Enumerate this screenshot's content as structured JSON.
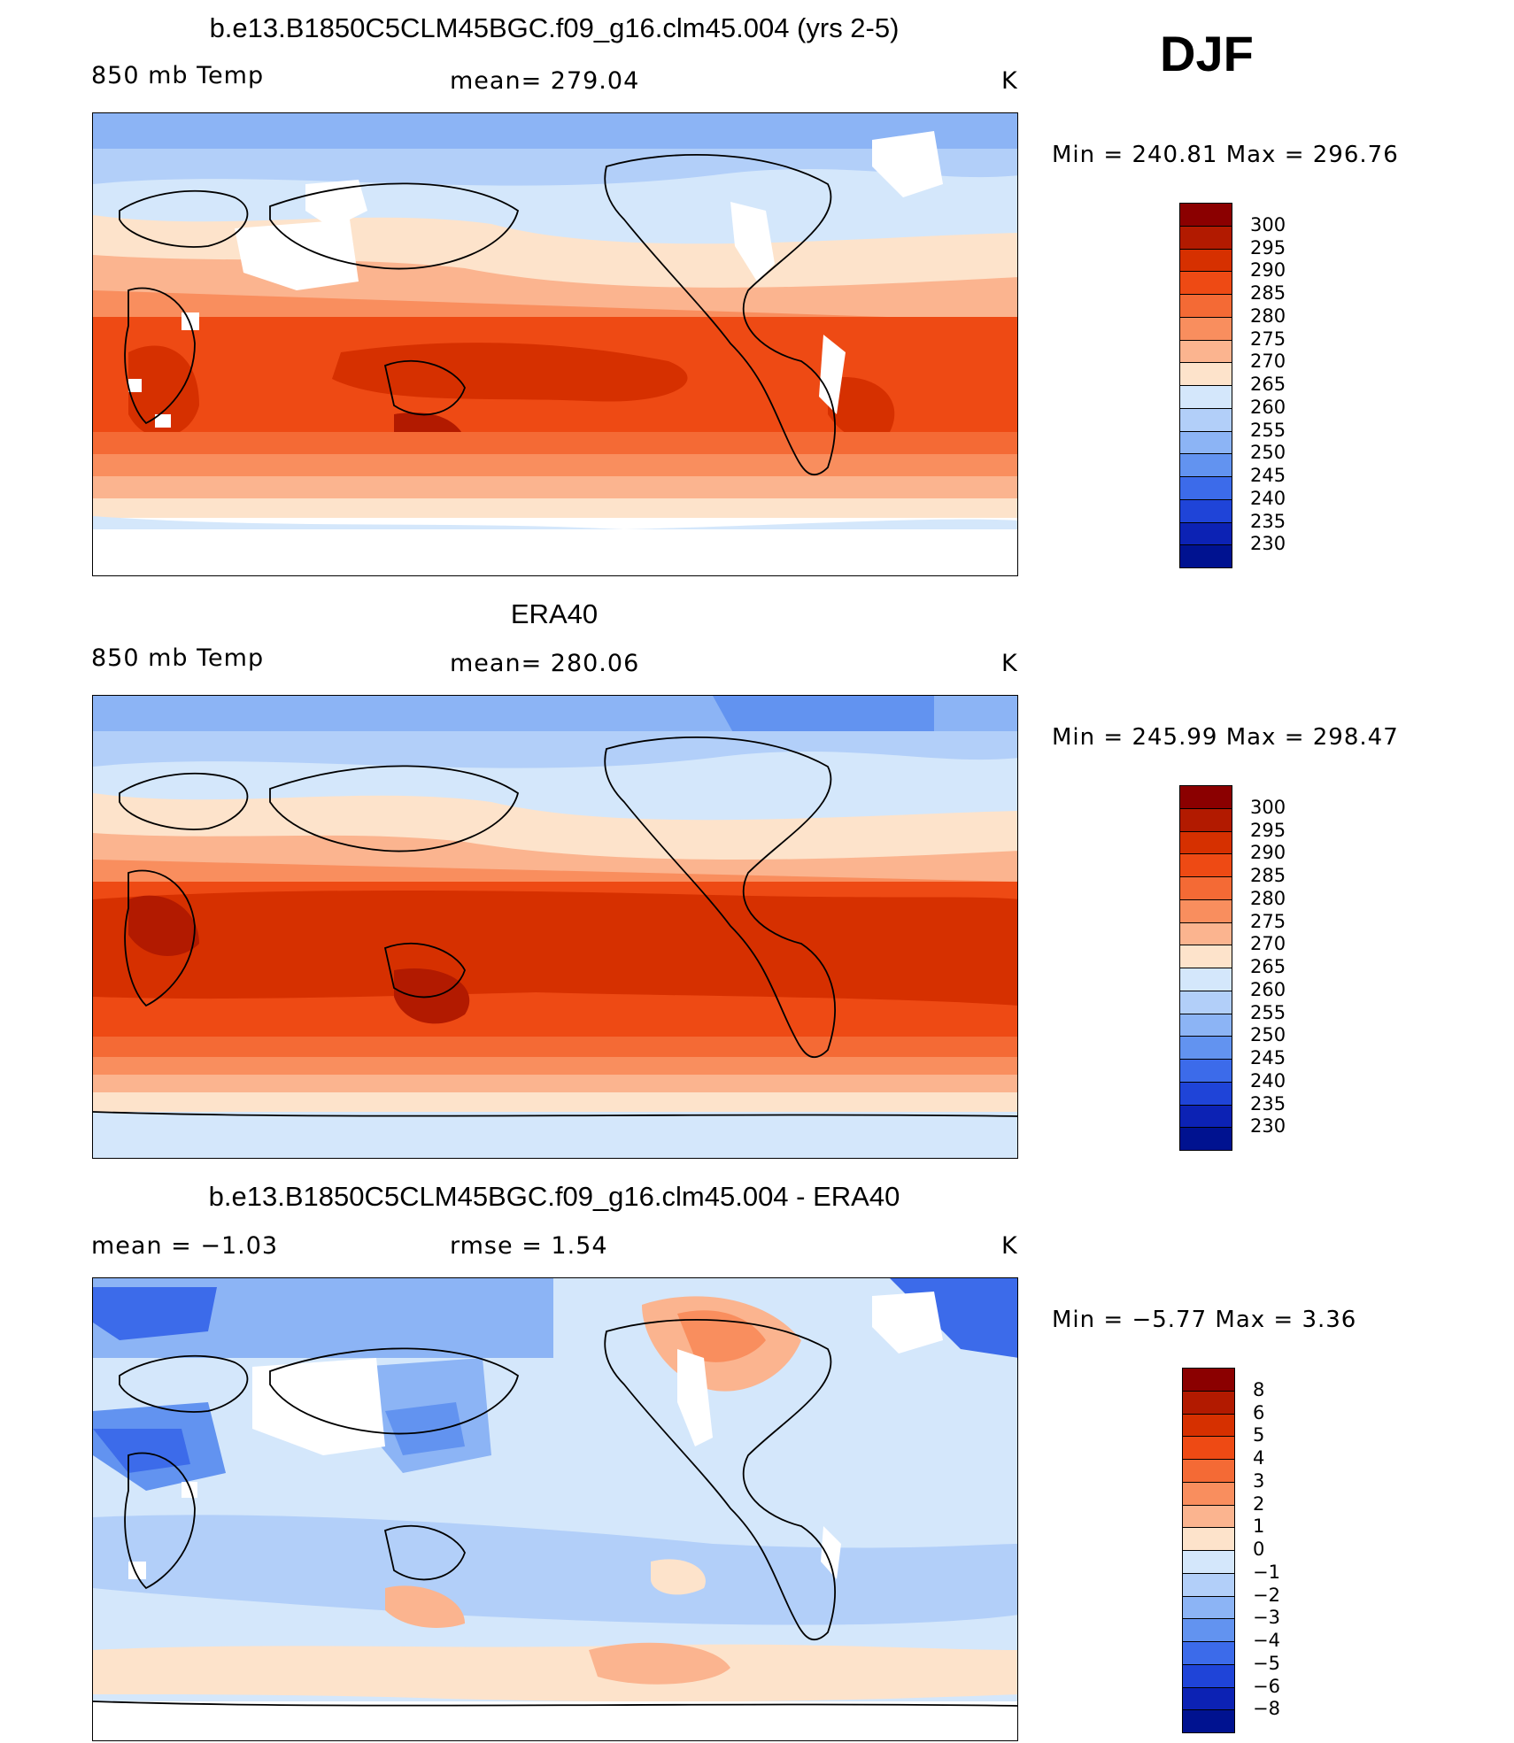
{
  "season": "DJF",
  "panels": [
    {
      "id": "model",
      "title": "b.e13.B1850C5CLM45BGC.f09_g16.clm45.004 (yrs 2-5)",
      "left_text": "850 mb Temp",
      "center_text": "mean=  279.04",
      "units": "K",
      "minmax": "Min  =  240.81  Max  =  296.76",
      "legend_key": "abs"
    },
    {
      "id": "obs",
      "title": "ERA40",
      "left_text": "850 mb Temp",
      "center_text": "mean=  280.06",
      "units": "K",
      "minmax": "Min  =  245.99  Max  =  298.47",
      "legend_key": "abs"
    },
    {
      "id": "diff",
      "title": "b.e13.B1850C5CLM45BGC.f09_g16.clm45.004 - ERA40",
      "left_text": "mean  =    −1.03",
      "center_text": "rmse  =     1.54",
      "units": "K",
      "minmax": "Min  =    −5.77  Max  =      3.36",
      "legend_key": "diff"
    }
  ],
  "legends": {
    "abs": {
      "labels": [
        "300",
        "295",
        "290",
        "285",
        "280",
        "275",
        "270",
        "265",
        "260",
        "255",
        "250",
        "245",
        "240",
        "235",
        "230"
      ],
      "colors": [
        "#8b0000",
        "#b21a00",
        "#d63000",
        "#ee4a14",
        "#f46a35",
        "#f98e5e",
        "#fbb48f",
        "#fde3cb",
        "#d4e7fb",
        "#b2cff9",
        "#8cb4f5",
        "#6293f0",
        "#3c6bea",
        "#1f44d8",
        "#0c22b4",
        "#001290"
      ]
    },
    "diff": {
      "labels": [
        "8",
        "6",
        "5",
        "4",
        "3",
        "2",
        "1",
        "0",
        "−1",
        "−2",
        "−3",
        "−4",
        "−5",
        "−6",
        "−8"
      ],
      "colors": [
        "#8b0000",
        "#b21a00",
        "#d63000",
        "#ee4a14",
        "#f46a35",
        "#f98e5e",
        "#fbb48f",
        "#fde3cb",
        "#d4e7fb",
        "#b2cff9",
        "#8cb4f5",
        "#6293f0",
        "#3c6bea",
        "#1f44d8",
        "#0c22b4",
        "#001290"
      ]
    }
  }
}
